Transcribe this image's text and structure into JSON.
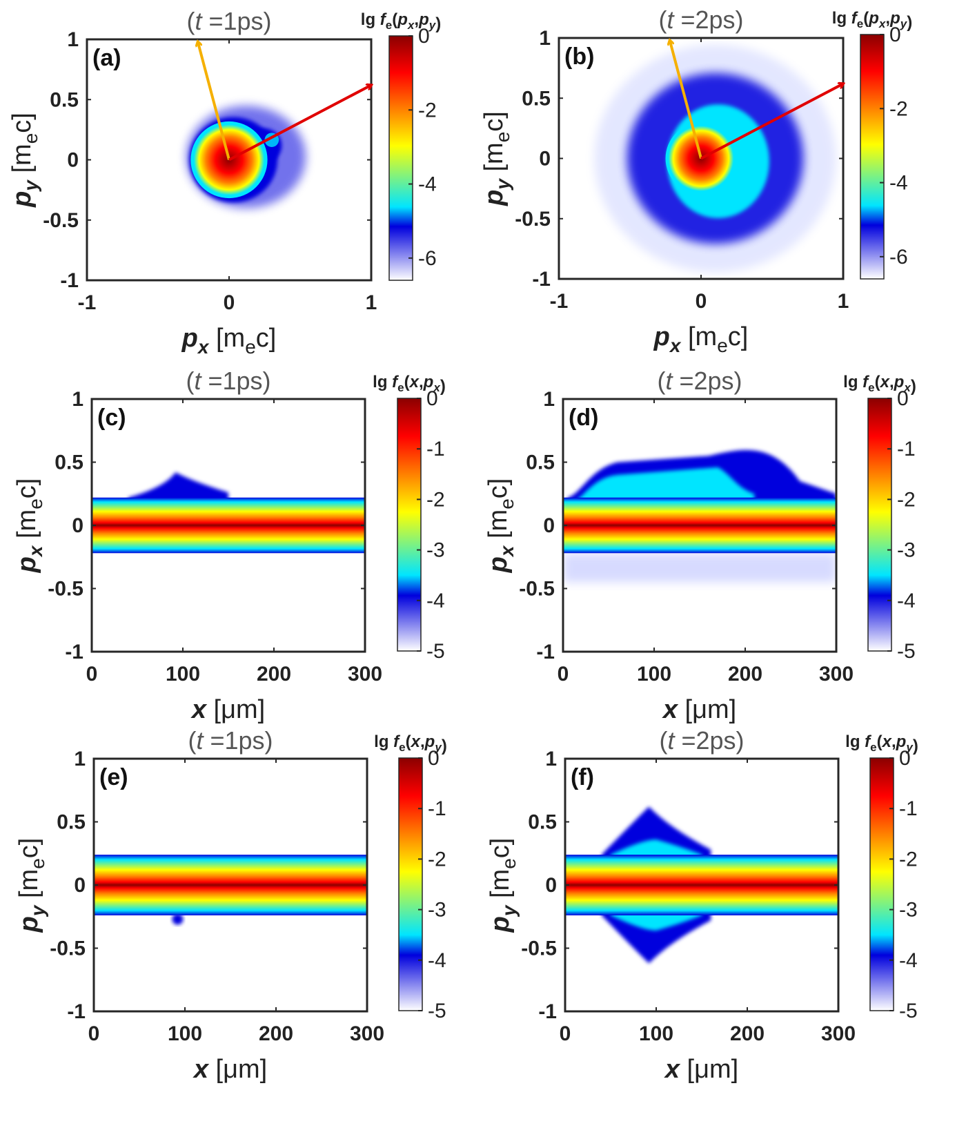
{
  "figure": {
    "colormap": [
      "#ffffff",
      "#0000dd",
      "#00e5ff",
      "#ffff00",
      "#ff8000",
      "#ff0000",
      "#8b0000"
    ],
    "arrow_colors": {
      "orange": "#f5b000",
      "red": "#e00000"
    }
  },
  "chart_data": [
    {
      "id": "a",
      "type": "heatmap",
      "panel_label": "(a)",
      "title": "(t =1ps)",
      "title_italic": "t",
      "title_rest": " =1ps)",
      "xlabel": "p_x [m_e c]",
      "ylabel": "p_y [m_e c]",
      "xlim": [
        -1,
        1
      ],
      "ylim": [
        -1,
        1
      ],
      "xticks": [
        "-1",
        "0",
        "1"
      ],
      "yticks": [
        "1",
        "0.5",
        "0",
        "-0.5",
        "-1"
      ],
      "colorbar": {
        "label": "lg f_e(p_x,p_y)",
        "ticks": [
          "0",
          "-2",
          "-4",
          "-6"
        ],
        "range": [
          -6.6,
          0
        ]
      },
      "arrows": [
        {
          "color": "orange",
          "from": [
            0,
            0
          ],
          "to": [
            -0.22,
            0.98
          ]
        },
        {
          "color": "red",
          "from": [
            0,
            0
          ],
          "to": [
            1.0,
            0.62
          ]
        }
      ],
      "distribution": "core-plus-right-lobe, core radius ~0.25, extends to p_x ~0.5"
    },
    {
      "id": "b",
      "type": "heatmap",
      "panel_label": "(b)",
      "title": "(t =2ps)",
      "title_italic": "t",
      "title_rest": " =2ps)",
      "xlabel": "p_x [m_e c]",
      "ylabel": "p_y [m_e c]",
      "xlim": [
        -1,
        1
      ],
      "ylim": [
        -1,
        1
      ],
      "xticks": [
        "-1",
        "0",
        "1"
      ],
      "yticks": [
        "1",
        "0.5",
        "0",
        "-0.5",
        "-1"
      ],
      "colorbar": {
        "label": "lg f_e(p_x,p_y)",
        "ticks": [
          "0",
          "-2",
          "-4",
          "-6"
        ],
        "range": [
          -6.6,
          0
        ]
      },
      "arrows": [
        {
          "color": "orange",
          "from": [
            0,
            0
          ],
          "to": [
            -0.22,
            0.98
          ]
        },
        {
          "color": "red",
          "from": [
            0,
            0
          ],
          "to": [
            1.0,
            0.62
          ]
        }
      ],
      "distribution": "core radius ~0.2 plus cyan halo to ~0.45 and blue halo to ~0.8"
    },
    {
      "id": "c",
      "type": "heatmap",
      "panel_label": "(c)",
      "title": "(t =1ps)",
      "title_italic": "t",
      "title_rest": " =1ps)",
      "xlabel": "x [μm]",
      "ylabel": "p_x [m_e c]",
      "xlim": [
        0,
        300
      ],
      "ylim": [
        -1,
        1
      ],
      "xticks": [
        "0",
        "100",
        "200",
        "300"
      ],
      "yticks": [
        "1",
        "0.5",
        "0",
        "-0.5",
        "-1"
      ],
      "colorbar": {
        "label": "lg f_e(x,p_x)",
        "ticks": [
          "0",
          "-1",
          "-2",
          "-3",
          "-4",
          "-5"
        ],
        "range": [
          -5,
          0
        ]
      },
      "distribution": "band |p_x| < 0.22, small bump near x=90 up to 0.45"
    },
    {
      "id": "d",
      "type": "heatmap",
      "panel_label": "(d)",
      "title": "(t =2ps)",
      "title_italic": "t",
      "title_rest": " =2ps)",
      "xlabel": "x [μm]",
      "ylabel": "p_x [m_e c]",
      "xlim": [
        0,
        300
      ],
      "ylim": [
        -1,
        1
      ],
      "xticks": [
        "0",
        "100",
        "200",
        "300"
      ],
      "yticks": [
        "1",
        "0.5",
        "0",
        "-0.5",
        "-1"
      ],
      "colorbar": {
        "label": "lg f_e(x,p_x)",
        "ticks": [
          "0",
          "-1",
          "-2",
          "-3",
          "-4",
          "-5"
        ],
        "range": [
          -5,
          0
        ]
      },
      "distribution": "band |p_x| < 0.22, positive plateau ~0.45 from x=30 to x=190, tail to 0.7 near x=220"
    },
    {
      "id": "e",
      "type": "heatmap",
      "panel_label": "(e)",
      "title": "(t =1ps)",
      "title_italic": "t",
      "title_rest": " =1ps)",
      "xlabel": "x [μm]",
      "ylabel": "p_y [m_e c]",
      "xlim": [
        0,
        300
      ],
      "ylim": [
        -1,
        1
      ],
      "xticks": [
        "0",
        "100",
        "200",
        "300"
      ],
      "yticks": [
        "1",
        "0.5",
        "0",
        "-0.5",
        "-1"
      ],
      "colorbar": {
        "label": "lg f_e(x,p_y)",
        "ticks": [
          "0",
          "-1",
          "-2",
          "-3",
          "-4",
          "-5"
        ],
        "range": [
          -5,
          0
        ]
      },
      "distribution": "band |p_y| < 0.24, nearly uniform"
    },
    {
      "id": "f",
      "type": "heatmap",
      "panel_label": "(f)",
      "title": "(t =2ps)",
      "title_italic": "t",
      "title_rest": " =2ps)",
      "xlabel": "x [μm]",
      "ylabel": "p_y [m_e c]",
      "xlim": [
        0,
        300
      ],
      "ylim": [
        -1,
        1
      ],
      "xticks": [
        "0",
        "100",
        "200",
        "300"
      ],
      "yticks": [
        "1",
        "0.5",
        "0",
        "-0.5",
        "-1"
      ],
      "colorbar": {
        "label": "lg f_e(x,p_y)",
        "ticks": [
          "0",
          "-1",
          "-2",
          "-3",
          "-4",
          "-5"
        ],
        "range": [
          -5,
          0
        ]
      },
      "distribution": "band |p_y| < 0.24, symmetric bulge near x=90 reaching ±0.6"
    }
  ]
}
